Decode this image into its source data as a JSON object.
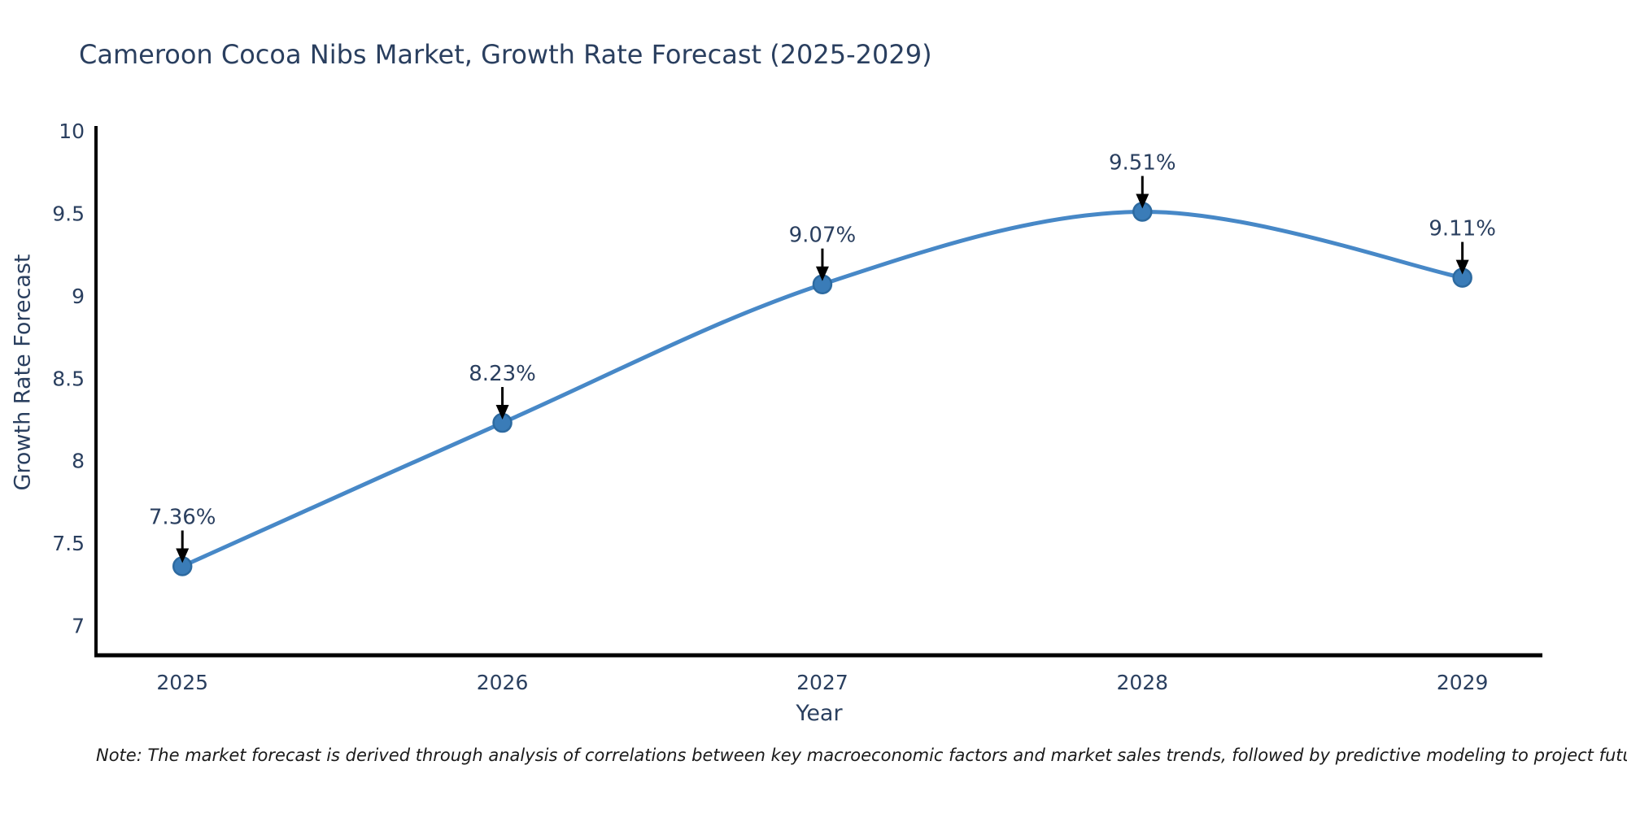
{
  "title": "Cameroon Cocoa Nibs Market, Growth Rate Forecast (2025-2029)",
  "note": "Note: The market forecast is derived through analysis of correlations between key macroeconomic factors and market sales trends, followed by predictive modeling to project future sales",
  "chart_data": {
    "type": "line",
    "title": "Cameroon Cocoa Nibs Market, Growth Rate Forecast (2025-2029)",
    "xlabel": "Year",
    "ylabel": "Growth Rate Forecast",
    "categories": [
      "2025",
      "2026",
      "2027",
      "2028",
      "2029"
    ],
    "x": [
      2025,
      2026,
      2027,
      2028,
      2029
    ],
    "series": [
      {
        "name": "Growth Rate Forecast",
        "values": [
          7.36,
          8.23,
          9.07,
          9.51,
          9.11
        ]
      }
    ],
    "point_labels": [
      "7.36%",
      "8.23%",
      "9.07%",
      "9.51%",
      "9.11%"
    ],
    "yticks": [
      7,
      7.5,
      8,
      8.5,
      9,
      9.5,
      10
    ],
    "ylim": [
      6.82,
      10.03
    ],
    "xlim": [
      2024.73,
      2029.25
    ],
    "line_shape": "spline",
    "grid": false,
    "legend": "none",
    "markers": true,
    "annotations_arrows": true,
    "colors": {
      "line": "#4788c7",
      "marker_fill": "#3a7cb8",
      "marker_edge": "#2d6aa0",
      "text": "#2a3f5f",
      "arrow": "#000000",
      "axis": "#000000",
      "note_text": "#1a1a1a",
      "background": "#ffffff"
    }
  }
}
